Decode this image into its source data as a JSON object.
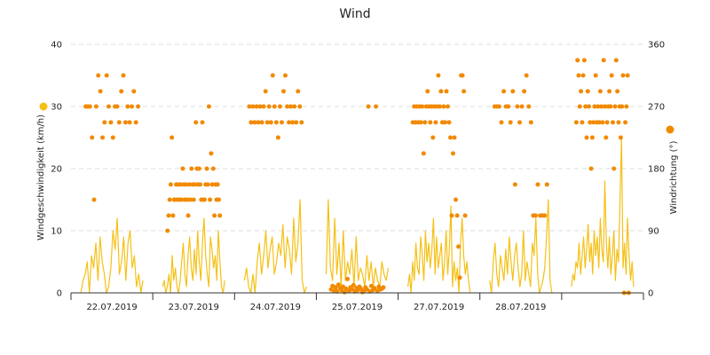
{
  "chart_data": {
    "type": "line+scatter",
    "title": "Wind",
    "x_categories": [
      "22.07.2019",
      "23.07.2019",
      "24.07.2019",
      "25.07.2019",
      "27.07.2019",
      "28.07.2019",
      ""
    ],
    "y_left": {
      "label": "Windgeschwindigkeit (km/h)",
      "ylim": [
        0,
        40
      ],
      "ticks": [
        0,
        10,
        20,
        30,
        40
      ]
    },
    "y_right": {
      "label": "Windrichtung (°)",
      "ylim": [
        0,
        360
      ],
      "ticks": [
        0,
        90,
        180,
        270,
        360
      ]
    },
    "colors": {
      "speed": "#f5c015",
      "direction": "#f28a00",
      "legend_speed": "#f5c015",
      "legend_direction": "#f28a00"
    },
    "series": [
      {
        "name": "Windgeschwindigkeit",
        "axis": "left",
        "type": "line",
        "days": [
          {
            "day": 0,
            "values": [
              0,
              2,
              3,
              5,
              0,
              6,
              4,
              8,
              2,
              9,
              5,
              3,
              0,
              1,
              4,
              10,
              7,
              12,
              3,
              5,
              9,
              2,
              8,
              10,
              4,
              6,
              1,
              3,
              0,
              2
            ]
          },
          {
            "day": 1,
            "values": [
              1,
              2,
              0,
              1,
              3,
              0,
              6,
              2,
              4,
              1,
              0,
              2,
              5,
              8,
              3,
              1,
              6,
              9,
              4,
              2,
              7,
              3,
              10,
              5,
              2,
              8,
              12,
              6,
              3,
              1,
              9,
              7,
              4,
              6,
              2,
              10,
              5,
              1,
              0,
              2
            ]
          },
          {
            "day": 2,
            "values": [
              2,
              4,
              1,
              0,
              3,
              0,
              5,
              8,
              3,
              6,
              10,
              4,
              7,
              9,
              3,
              5,
              8,
              6,
              11,
              4,
              9,
              7,
              3,
              12,
              5,
              8,
              15,
              2,
              0,
              1
            ]
          },
          {
            "day": 3,
            "values": [
              3,
              15,
              4,
              2,
              12,
              3,
              8,
              1,
              10,
              2,
              5,
              3,
              7,
              1,
              9,
              2,
              4,
              3,
              1,
              6,
              2,
              5,
              1,
              4,
              2,
              1,
              5,
              3,
              2,
              4
            ]
          },
          {
            "day": 4,
            "values": [
              1,
              3,
              0,
              5,
              2,
              8,
              4,
              3,
              9,
              6,
              2,
              10,
              5,
              8,
              4,
              7,
              12,
              3,
              9,
              4,
              6,
              8,
              2,
              5,
              10,
              3,
              7,
              14,
              1,
              5,
              2,
              4,
              0,
              8,
              12,
              6,
              3,
              5,
              2,
              0
            ]
          },
          {
            "day": 5,
            "values": [
              2,
              0,
              5,
              8,
              3,
              1,
              6,
              4,
              2,
              7,
              3,
              9,
              5,
              2,
              6,
              8,
              4,
              1,
              3,
              10,
              2,
              5,
              3,
              1,
              8,
              6,
              12,
              3,
              0,
              1,
              2,
              4,
              9,
              15,
              2,
              0
            ]
          },
          {
            "day": 6,
            "values": [
              1,
              3,
              2,
              5,
              4,
              8,
              3,
              6,
              9,
              4,
              7,
              11,
              5,
              8,
              3,
              10,
              6,
              9,
              4,
              12,
              7,
              5,
              18,
              8,
              4,
              9,
              3,
              6,
              10,
              2,
              7,
              5,
              15,
              25,
              4,
              8,
              3,
              12,
              6,
              2,
              5,
              1
            ]
          }
        ]
      },
      {
        "name": "Windrichtung",
        "axis": "right",
        "type": "scatter",
        "days": [
          {
            "day": 0,
            "values": [
              270,
              270,
              270,
              225,
              135,
              270,
              315,
              292,
              225,
              247,
              315,
              270,
              247,
              225,
              270,
              270,
              247,
              292,
              315,
              247,
              270,
              247,
              270,
              292,
              247,
              270
            ]
          },
          {
            "day": 1,
            "values": [
              90,
              112,
              135,
              157,
              225,
              112,
              135,
              135,
              157,
              135,
              157,
              135,
              157,
              135,
              180,
              157,
              135,
              157,
              135,
              112,
              157,
              135,
              180,
              157,
              135,
              157,
              247,
              180,
              157,
              180,
              157,
              135,
              247,
              135,
              135,
              157,
              180,
              157,
              270,
              135,
              202,
              157,
              180,
              112,
              157,
              135,
              157,
              135,
              112
            ]
          },
          {
            "day": 2,
            "values": [
              270,
              247,
              270,
              247,
              270,
              247,
              270,
              247,
              270,
              292,
              247,
              270,
              247,
              315,
              270,
              247,
              225,
              270,
              247,
              292,
              315,
              270,
              247,
              270,
              247,
              270,
              247,
              292,
              270,
              247
            ]
          },
          {
            "day": 3,
            "values": [
              5,
              10,
              3,
              8,
              2,
              12,
              7,
              4,
              9,
              1,
              6,
              20,
              3,
              8,
              5,
              11,
              2,
              7,
              4,
              9,
              6,
              1,
              3,
              8,
              5,
              270,
              2,
              10,
              4,
              7,
              270,
              3,
              9,
              5,
              6,
              8
            ]
          },
          {
            "day": 4,
            "values": [
              247,
              270,
              247,
              270,
              247,
              270,
              247,
              270,
              202,
              247,
              270,
              292,
              270,
              247,
              270,
              225,
              270,
              247,
              270,
              315,
              270,
              292,
              247,
              270,
              247,
              292,
              270,
              247,
              225,
              112,
              202,
              225,
              135,
              112,
              67,
              22,
              315,
              315,
              292,
              112
            ]
          },
          {
            "day": 5,
            "values": [
              270,
              270,
              270,
              247,
              292,
              270,
              270,
              247,
              292,
              157,
              270,
              247,
              270,
              292,
              315,
              270,
              247,
              112,
              112,
              157,
              112,
              112,
              112,
              157
            ]
          },
          {
            "day": 6,
            "values": [
              247,
              337,
              315,
              270,
              292,
              247,
              315,
              337,
              270,
              225,
              292,
              270,
              247,
              180,
              225,
              247,
              270,
              315,
              247,
              270,
              247,
              292,
              270,
              247,
              337,
              270,
              225,
              247,
              270,
              292,
              270,
              315,
              247,
              180,
              270,
              337,
              292,
              247,
              270,
              225,
              270,
              315,
              0,
              247,
              270,
              315,
              0
            ]
          }
        ]
      }
    ]
  }
}
